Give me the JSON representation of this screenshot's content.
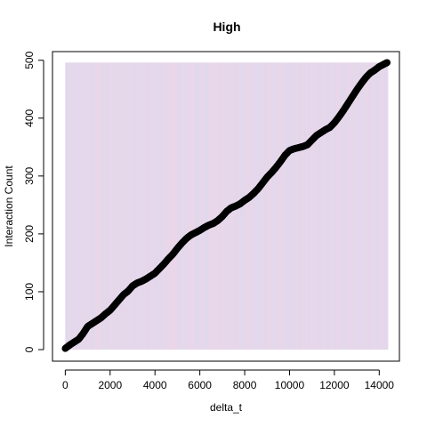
{
  "chart_data": {
    "type": "scatter",
    "title": "High",
    "xlabel": "delta_t",
    "ylabel": "Interaction Count",
    "xlim": [
      -570,
      14900
    ],
    "ylim": [
      -20,
      515
    ],
    "xticks": [
      0,
      2000,
      4000,
      6000,
      8000,
      10000,
      12000,
      14000
    ],
    "yticks": [
      0,
      100,
      200,
      300,
      400,
      500
    ],
    "xtick_labels": [
      "0",
      "2000",
      "4000",
      "6000",
      "8000",
      "10000",
      "12000",
      "14000"
    ],
    "ytick_labels": [
      "0",
      "100",
      "200",
      "300",
      "400",
      "500"
    ],
    "grid": false,
    "background_band": {
      "x": [
        0,
        14400
      ],
      "y": [
        0,
        496
      ],
      "colors": [
        "#e6d8ea",
        "#dcd8ee",
        "#ecd6e6"
      ]
    },
    "marker_color": "#000000",
    "series": [
      {
        "x": [
          0,
          200,
          400,
          600,
          800,
          1000,
          1200,
          1400,
          1600,
          1800,
          2000,
          2200,
          2400,
          2600,
          2800,
          3000,
          3200,
          3400,
          3600,
          3800,
          4000,
          4200,
          4400,
          4600,
          4800,
          5000,
          5200,
          5400,
          5600,
          5800,
          6000,
          6200,
          6400,
          6600,
          6800,
          7000,
          7200,
          7400,
          7600,
          7800,
          8000,
          8200,
          8400,
          8600,
          8800,
          9000,
          9200,
          9400,
          9600,
          9800,
          10000,
          10200,
          10400,
          10600,
          10800,
          11000,
          11200,
          11400,
          11600,
          11800,
          12000,
          12200,
          12400,
          12600,
          12800,
          13000,
          13200,
          13400,
          13600,
          13800,
          14000,
          14200,
          14350
        ],
        "y": [
          2,
          8,
          13,
          18,
          28,
          40,
          45,
          50,
          55,
          62,
          68,
          77,
          86,
          95,
          101,
          110,
          115,
          118,
          122,
          127,
          132,
          140,
          148,
          157,
          165,
          175,
          184,
          192,
          198,
          202,
          206,
          211,
          215,
          218,
          223,
          230,
          239,
          245,
          248,
          252,
          258,
          263,
          270,
          278,
          288,
          298,
          306,
          315,
          325,
          336,
          344,
          347,
          349,
          351,
          354,
          362,
          370,
          375,
          380,
          384,
          392,
          402,
          413,
          425,
          437,
          449,
          460,
          470,
          478,
          483,
          489,
          493,
          496
        ]
      }
    ]
  }
}
